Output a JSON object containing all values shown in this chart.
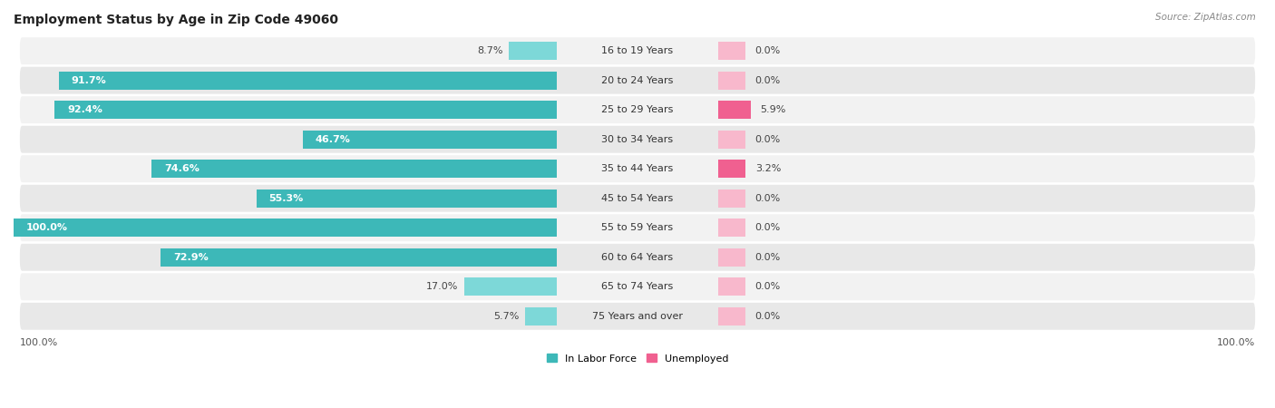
{
  "title": "Employment Status by Age in Zip Code 49060",
  "source": "Source: ZipAtlas.com",
  "age_groups": [
    "16 to 19 Years",
    "20 to 24 Years",
    "25 to 29 Years",
    "30 to 34 Years",
    "35 to 44 Years",
    "45 to 54 Years",
    "55 to 59 Years",
    "60 to 64 Years",
    "65 to 74 Years",
    "75 Years and over"
  ],
  "in_labor_force": [
    8.7,
    91.7,
    92.4,
    46.7,
    74.6,
    55.3,
    100.0,
    72.9,
    17.0,
    5.7
  ],
  "unemployed": [
    0.0,
    0.0,
    5.9,
    0.0,
    3.2,
    0.0,
    0.0,
    0.0,
    0.0,
    0.0
  ],
  "labor_color": "#3DB8B8",
  "labor_color_light": "#7DD8D8",
  "unemployed_color": "#F06090",
  "unemployed_color_light": "#F8B8CC",
  "row_bg_even": "#F2F2F2",
  "row_bg_odd": "#E8E8E8",
  "title_fontsize": 10,
  "label_fontsize": 8,
  "source_fontsize": 7.5,
  "axis_max": 100,
  "min_unemp_bar": 5,
  "legend_labor": "In Labor Force",
  "legend_unemployed": "Unemployed",
  "x_left_label": "100.0%",
  "x_right_label": "100.0%"
}
